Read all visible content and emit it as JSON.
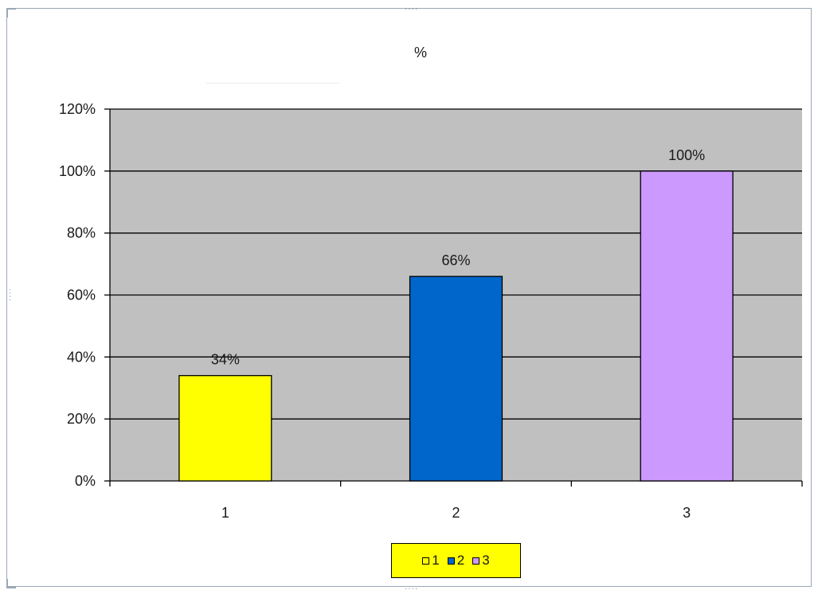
{
  "colors": {
    "plot_background": "#c0c0c0",
    "gridline": "#000000",
    "legend_background": "#ffff00"
  },
  "chart_data": {
    "type": "bar",
    "title": "%",
    "categories": [
      "1",
      "2",
      "3"
    ],
    "values": [
      0.34,
      0.66,
      1.0
    ],
    "data_labels": [
      "34%",
      "66%",
      "100%"
    ],
    "bar_colors": [
      "#ffff00",
      "#0066cc",
      "#cc99ff"
    ],
    "ylim": [
      0,
      1.2
    ],
    "yticks": [
      0,
      0.2,
      0.4,
      0.6,
      0.8,
      1.0,
      1.2
    ],
    "ytick_labels": [
      "0%",
      "20%",
      "40%",
      "60%",
      "80%",
      "100%",
      "120%"
    ],
    "xlabel": "",
    "ylabel": "",
    "grid": true,
    "legend": {
      "position": "bottom",
      "entries": [
        "1",
        "2",
        "3"
      ]
    }
  }
}
